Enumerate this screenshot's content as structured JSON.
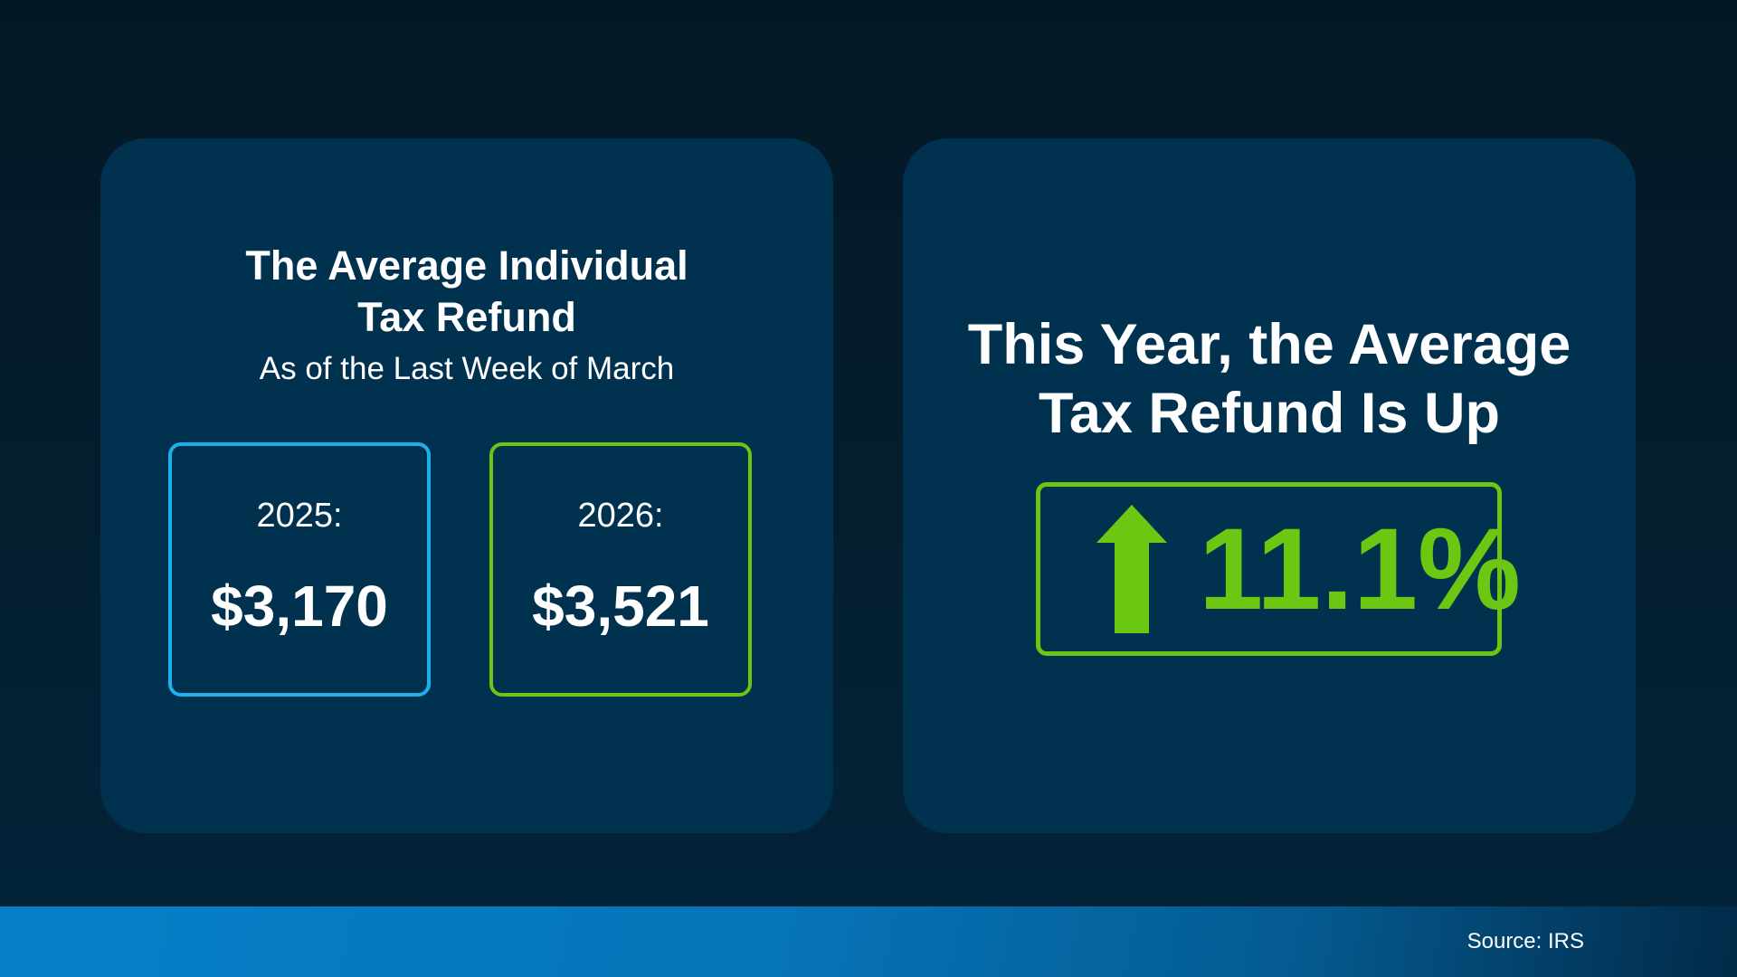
{
  "left_card": {
    "title_line1": "The Average Individual",
    "title_line2": "Tax Refund",
    "subtitle": "As of the Last Week of March",
    "boxes": [
      {
        "year": "2025:",
        "amount": "$3,170",
        "border_color": "#1fb0ea"
      },
      {
        "year": "2026:",
        "amount": "$3,521",
        "border_color": "#6cc712"
      }
    ]
  },
  "right_card": {
    "title_line1": "This Year, the Average",
    "title_line2": "Tax Refund Is Up",
    "change": "11.1%",
    "change_icon": "arrow-up-icon",
    "accent_color": "#6cc712"
  },
  "footer": {
    "source": "Source: IRS"
  }
}
